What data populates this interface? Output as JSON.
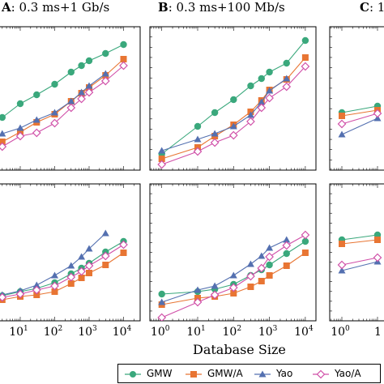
{
  "panel_titles": {
    "A": {
      "letter": "A",
      "text": ": 0.3 ms+1 Gb/s"
    },
    "B": {
      "letter": "B",
      "text": ": 0.3 ms+100 Mb/s"
    },
    "C": {
      "letter": "C",
      "text": ": 1"
    }
  },
  "xlabel": "Database Size",
  "x_tick_labels": [
    "10",
    "1",
    "10",
    "2",
    "10",
    "3",
    "10",
    "4"
  ],
  "panelC_tick_labels": [
    "10",
    "0",
    "1"
  ],
  "legend": [
    "GMW",
    "GMW/A",
    "Yao",
    "Yao/A"
  ],
  "colors": {
    "GMW": "#3aa87c",
    "GMW/A": "#e87533",
    "Yao": "#5470b0",
    "Yao/A": "#d04fa8"
  },
  "chart_data": [
    {
      "type": "line",
      "panel": "A-top",
      "x_scale": "log",
      "series": [
        {
          "name": "GMW",
          "x": [
            3,
            10,
            30,
            100,
            300,
            600,
            1000,
            3000,
            10000
          ],
          "y": [
            145,
            128,
            117,
            104,
            89,
            81,
            75,
            66,
            55
          ]
        },
        {
          "name": "GMW/A",
          "x": [
            3,
            10,
            30,
            100,
            300,
            600,
            1000,
            3000,
            10000
          ],
          "y": [
            175,
            163,
            151,
            141,
            125,
            115,
            108,
            93,
            73
          ]
        },
        {
          "name": "Yao",
          "x": [
            3,
            10,
            30,
            100,
            300,
            600,
            1000,
            3000
          ],
          "y": [
            165,
            158,
            148,
            139,
            125,
            114,
            106,
            91
          ]
        },
        {
          "name": "Yao/A",
          "x": [
            3,
            10,
            30,
            100,
            300,
            600,
            1000,
            3000,
            10000
          ],
          "y": [
            181,
            168,
            164,
            152,
            133,
            122,
            114,
            100,
            81
          ]
        }
      ]
    },
    {
      "type": "line",
      "panel": "B-top",
      "x_scale": "log",
      "series": [
        {
          "name": "GMW",
          "x": [
            1,
            10,
            30,
            100,
            300,
            600,
            1000,
            3000,
            10000
          ],
          "y": [
            190,
            156,
            139,
            123,
            106,
            97,
            89,
            78,
            50
          ]
        },
        {
          "name": "GMW/A",
          "x": [
            1,
            10,
            30,
            100,
            300,
            600,
            1000,
            3000,
            10000
          ],
          "y": [
            196,
            182,
            168,
            154,
            138,
            124,
            111,
            98,
            71
          ]
        },
        {
          "name": "Yao",
          "x": [
            1,
            10,
            30,
            100,
            300,
            600,
            1000,
            3000
          ],
          "y": [
            186,
            172,
            165,
            156,
            142,
            126,
            112,
            97
          ]
        },
        {
          "name": "Yao/A",
          "x": [
            1,
            10,
            30,
            100,
            300,
            600,
            1000,
            3000,
            10000
          ],
          "y": [
            203,
            187,
            176,
            167,
            150,
            133,
            121,
            107,
            82
          ]
        }
      ]
    },
    {
      "type": "line",
      "panel": "A-bottom",
      "x_scale": "log",
      "series": [
        {
          "name": "GMW",
          "x": [
            3,
            10,
            30,
            100,
            300,
            600,
            1000,
            3000,
            10000
          ],
          "y": [
            365,
            360,
            356,
            349,
            338,
            331,
            325,
            311,
            298
          ]
        },
        {
          "name": "GMW/A",
          "x": [
            3,
            10,
            30,
            100,
            300,
            600,
            1000,
            3000,
            10000
          ],
          "y": [
            370,
            366,
            364,
            360,
            350,
            343,
            337,
            327,
            312
          ]
        },
        {
          "name": "Yao",
          "x": [
            3,
            10,
            30,
            100,
            300,
            600,
            1000,
            3000
          ],
          "y": [
            364,
            359,
            352,
            340,
            328,
            317,
            307,
            288
          ]
        },
        {
          "name": "Yao/A",
          "x": [
            3,
            10,
            30,
            100,
            300,
            600,
            1000,
            3000,
            10000
          ],
          "y": [
            367,
            363,
            358,
            353,
            342,
            335,
            328,
            316,
            302
          ]
        }
      ]
    },
    {
      "type": "line",
      "panel": "B-bottom",
      "x_scale": "log",
      "series": [
        {
          "name": "GMW",
          "x": [
            1,
            10,
            30,
            100,
            300,
            600,
            1000,
            3000,
            10000
          ],
          "y": [
            363,
            360,
            357,
            351,
            340,
            333,
            327,
            313,
            298
          ]
        },
        {
          "name": "GMW/A",
          "x": [
            1,
            10,
            30,
            100,
            300,
            600,
            1000,
            3000,
            10000
          ],
          "y": [
            376,
            368,
            366,
            362,
            354,
            347,
            340,
            328,
            312
          ]
        },
        {
          "name": "Yao",
          "x": [
            1,
            10,
            30,
            100,
            300,
            600,
            1000,
            3000
          ],
          "y": [
            373,
            358,
            353,
            340,
            326,
            316,
            306,
            296
          ]
        },
        {
          "name": "Yao/A",
          "x": [
            1,
            10,
            30,
            100,
            300,
            600,
            1000,
            3000,
            10000
          ],
          "y": [
            392,
            373,
            364,
            355,
            341,
            331,
            317,
            303,
            290
          ]
        }
      ]
    },
    {
      "type": "line",
      "panel": "C-top",
      "x_scale": "log",
      "series": [
        {
          "name": "GMW",
          "x": [
            1,
            10
          ],
          "y": [
            139,
            131
          ]
        },
        {
          "name": "GMW/A",
          "x": [
            1,
            10
          ],
          "y": [
            143,
            136
          ]
        },
        {
          "name": "Yao",
          "x": [
            1,
            10
          ],
          "y": [
            166,
            146
          ]
        },
        {
          "name": "Yao/A",
          "x": [
            1,
            10
          ],
          "y": [
            153,
            140
          ]
        }
      ]
    },
    {
      "type": "line",
      "panel": "C-bottom",
      "x_scale": "log",
      "series": [
        {
          "name": "GMW",
          "x": [
            1,
            10
          ],
          "y": [
            296,
            290
          ]
        },
        {
          "name": "GMW/A",
          "x": [
            1,
            10
          ],
          "y": [
            301,
            296
          ]
        },
        {
          "name": "Yao",
          "x": [
            1,
            10
          ],
          "y": [
            334,
            323
          ]
        },
        {
          "name": "Yao/A",
          "x": [
            1,
            10
          ],
          "y": [
            327,
            318
          ]
        }
      ]
    }
  ]
}
